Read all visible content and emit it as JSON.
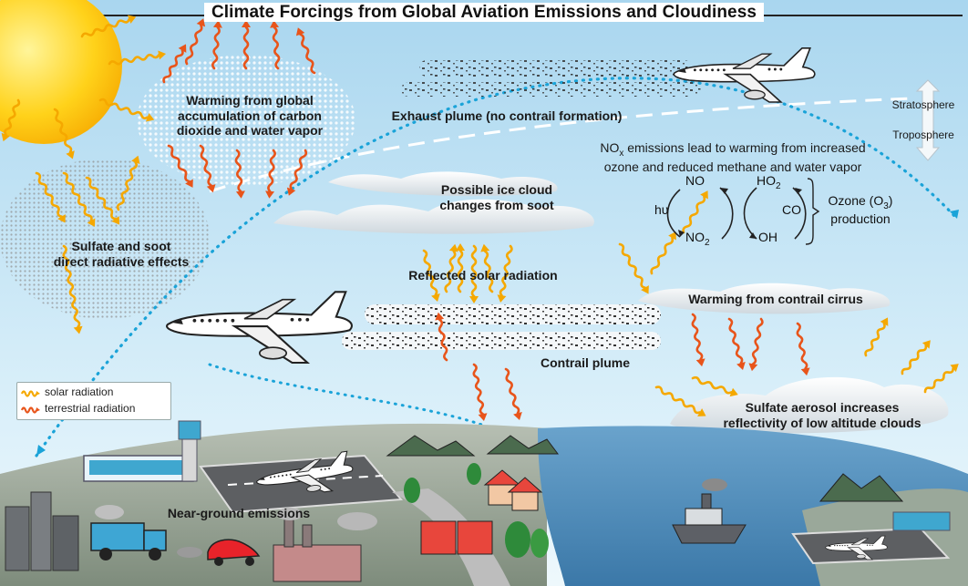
{
  "title": "Climate Forcings from Global Aviation Emissions and Cloudiness",
  "labels": {
    "warming_co2_line1": "Warming from global",
    "warming_co2_line2": "accumulation of carbon",
    "warming_co2_line3": "dioxide and water vapor",
    "exhaust_plume": "Exhaust plume (no contrail formation)",
    "stratosphere": "Stratosphere",
    "troposphere": "Troposphere",
    "nox_line1": "NOx emissions lead to warming from increased",
    "nox_line2": "ozone and reduced methane and water vapor",
    "ice_cloud_line1": "Possible ice cloud",
    "ice_cloud_line2": "changes from soot",
    "sulfate_soot_line1": "Sulfate and soot",
    "sulfate_soot_line2": "direct radiative effects",
    "reflected_solar": "Reflected solar radiation",
    "contrail_cirrus": "Warming from contrail cirrus",
    "contrail_plume": "Contrail plume",
    "sulfate_aerosol_line1": "Sulfate aerosol increases",
    "sulfate_aerosol_line2": "reflectivity of low altitude clouds",
    "near_ground": "Near-ground emissions"
  },
  "chemistry": {
    "no": "NO",
    "no2": "NO2",
    "ho2": "HO2",
    "oh": "OH",
    "co": "CO",
    "hv": "hυ",
    "ozone_line1": "Ozone (O3)",
    "ozone_line2": "production"
  },
  "legend": {
    "solar": "solar radiation",
    "terrestrial": "terrestrial radiation"
  },
  "colors": {
    "sky_top": "#a9d6ef",
    "sky_bottom": "#e3f3fb",
    "solar_arrow": "#f5a800",
    "terrestrial_arrow": "#e8541a",
    "flight_path": "#1aa3d8",
    "sun": "#ffd21a",
    "water": "#4a86b4",
    "ground": "#8a9a8a"
  }
}
